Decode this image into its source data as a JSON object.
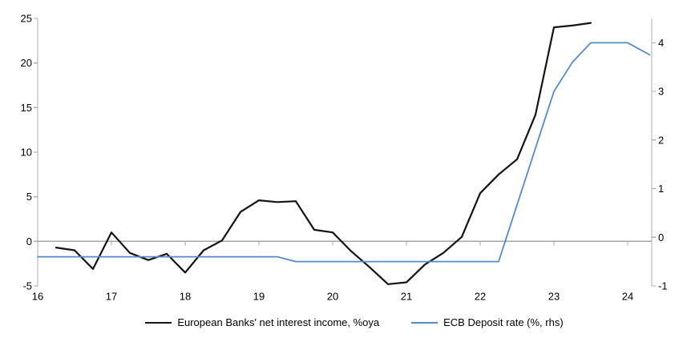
{
  "chart_data": {
    "type": "line",
    "title": "",
    "grid": "off",
    "zero_line": true,
    "legend_position": "bottom",
    "x_axis": {
      "min": 16,
      "max": 24.33,
      "tick_values": [
        16,
        17,
        18,
        19,
        20,
        21,
        22,
        23,
        24
      ],
      "tick_labels": [
        "16",
        "17",
        "18",
        "19",
        "20",
        "21",
        "22",
        "23",
        "24"
      ]
    },
    "y_left_axis": {
      "min": -5,
      "max": 25,
      "tick_values": [
        25,
        20,
        15,
        10,
        5,
        0,
        -5
      ],
      "tick_labels": [
        "25",
        "20",
        "15",
        "10",
        "5",
        "0",
        "-5"
      ]
    },
    "y_right_axis": {
      "min": -1,
      "max": 4.5,
      "tick_values": [
        4,
        3,
        2,
        1,
        0,
        -1
      ],
      "tick_labels": [
        "4",
        "3",
        "2",
        "1",
        "0",
        "-1"
      ]
    },
    "series": [
      {
        "name": "European Banks' net interest income, %oya",
        "axis": "left",
        "color": "#141414",
        "stroke_width": 2.2,
        "x": [
          16.25,
          16.5,
          16.75,
          17.0,
          17.25,
          17.5,
          17.75,
          18.0,
          18.25,
          18.5,
          18.75,
          19.0,
          19.25,
          19.5,
          19.75,
          20.0,
          20.25,
          20.5,
          20.75,
          21.0,
          21.25,
          21.5,
          21.75,
          22.0,
          22.25,
          22.5,
          22.75,
          23.0,
          23.25,
          23.5
        ],
        "y": [
          -0.7,
          -1.0,
          -3.1,
          1.0,
          -1.3,
          -2.1,
          -1.4,
          -3.5,
          -1.0,
          0.1,
          3.3,
          4.6,
          4.4,
          4.5,
          1.3,
          1.0,
          -1.1,
          -2.9,
          -4.8,
          -4.6,
          -2.6,
          -1.3,
          0.5,
          5.4,
          7.5,
          9.2,
          14.2,
          24.0,
          24.2,
          24.5
        ]
      },
      {
        "name": "ECB Deposit rate (%, rhs)",
        "axis": "right",
        "color": "#5589C8",
        "stroke_width": 1.8,
        "x": [
          16.0,
          19.25,
          19.5,
          22.25,
          23.0,
          23.25,
          23.5,
          24.0,
          24.3
        ],
        "y": [
          -0.4,
          -0.4,
          -0.5,
          -0.5,
          3.0,
          3.6,
          4.0,
          4.0,
          3.75
        ]
      }
    ],
    "colors": {
      "axis_line": "#ADADAD",
      "zero_line": "#A6A6A6",
      "text": "#000000",
      "background": "#ffffff"
    }
  }
}
